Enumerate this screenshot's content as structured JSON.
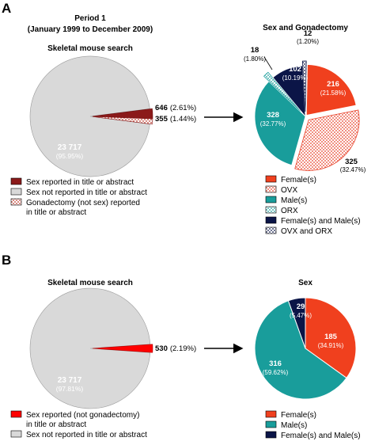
{
  "panels": {
    "A": {
      "letter": "A",
      "period_title": "Period 1",
      "period_range": "(January 1999 to December 2009)",
      "left_title": "Skeletal mouse search",
      "right_title": "Sex and Gonadectomy",
      "left_legend": [
        "Sex reported in title or abstract",
        "Sex not reported in title or abstract",
        "Gonadectomy (not sex) reported",
        "in title or abstract"
      ],
      "right_legend": [
        "Female(s)",
        "OVX",
        "Male(s)",
        "ORX",
        "Female(s) and Male(s)",
        "OVX and ORX"
      ]
    },
    "B": {
      "letter": "B",
      "left_title": "Skeletal mouse search",
      "right_title": "Sex",
      "left_legend": [
        "Sex reported (not gonadectomy)",
        "in title or abstract",
        "Sex not reported in title or abstract"
      ],
      "right_legend": [
        "Female(s)",
        "Male(s)",
        "Female(s) and Male(s)"
      ]
    }
  },
  "colors": {
    "grey": "#d9d9d9",
    "darkred": "#8b1a1a",
    "red": "#ff0000",
    "female": "#f0401e",
    "male": "#199d9b",
    "both": "#0b1547",
    "ovx": "#f3b0a8",
    "orx": "#a9dedd",
    "ovx_orx": "#b7bacb"
  },
  "chart_data": [
    {
      "type": "pie",
      "panel": "A",
      "title": "Skeletal mouse search",
      "slices": [
        {
          "label": "Sex not reported in title or abstract",
          "value": 23717,
          "value_text": "23 717",
          "pct_text": "(95.95%)"
        },
        {
          "label": "Sex reported in title or abstract",
          "value": 646,
          "value_text": "646",
          "pct_text": "(2.61%)"
        },
        {
          "label": "Gonadectomy (not sex) reported in title or abstract",
          "value": 355,
          "value_text": "355",
          "pct_text": "(1.44%)"
        }
      ]
    },
    {
      "type": "pie",
      "panel": "A",
      "title": "Sex and Gonadectomy",
      "slices": [
        {
          "label": "Female(s)",
          "value": 216,
          "value_text": "216",
          "pct_text": "(21.58%)"
        },
        {
          "label": "OVX",
          "value": 325,
          "value_text": "325",
          "pct_text": "(32.47%)"
        },
        {
          "label": "Male(s)",
          "value": 328,
          "value_text": "328",
          "pct_text": "(32.77%)"
        },
        {
          "label": "ORX",
          "value": 18,
          "value_text": "18",
          "pct_text": "(1.80%)"
        },
        {
          "label": "Female(s) and Male(s)",
          "value": 102,
          "value_text": "102",
          "pct_text": "(10.19%)"
        },
        {
          "label": "OVX and ORX",
          "value": 12,
          "value_text": "12",
          "pct_text": "(1.20%)"
        }
      ]
    },
    {
      "type": "pie",
      "panel": "B",
      "title": "Skeletal mouse search",
      "slices": [
        {
          "label": "Sex not reported in title or abstract",
          "value": 23717,
          "value_text": "23 717",
          "pct_text": "(97.81%)"
        },
        {
          "label": "Sex reported (not gonadectomy) in title or abstract",
          "value": 530,
          "value_text": "530",
          "pct_text": "(2.19%)"
        }
      ]
    },
    {
      "type": "pie",
      "panel": "B",
      "title": "Sex",
      "slices": [
        {
          "label": "Female(s)",
          "value": 185,
          "value_text": "185",
          "pct_text": "(34.91%)"
        },
        {
          "label": "Male(s)",
          "value": 316,
          "value_text": "316",
          "pct_text": "(59.62%)"
        },
        {
          "label": "Female(s) and Male(s)",
          "value": 29,
          "value_text": "29",
          "pct_text": "(5.47%)"
        }
      ]
    }
  ]
}
